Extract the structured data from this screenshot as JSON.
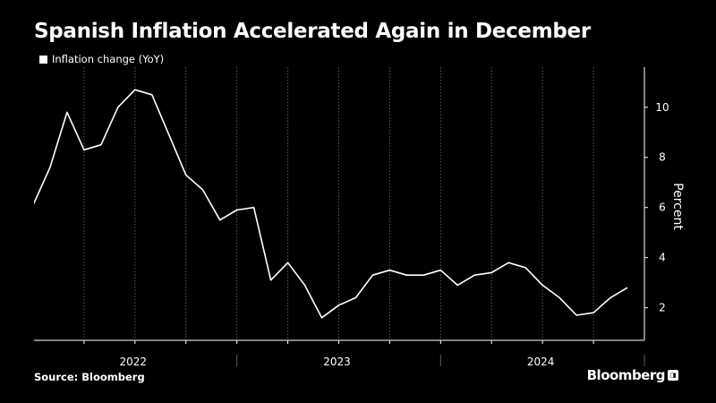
{
  "title": "Spanish Inflation Accelerated Again in December",
  "source": "Source: Bloomberg",
  "brand": "Bloomberg",
  "brand_badge": "◨",
  "colors": {
    "background": "#000000",
    "line": "#ffffff",
    "grid": "#5a5a5a",
    "text": "#ffffff"
  },
  "chart_data": {
    "type": "line",
    "legend": "Inflation change (YoY)",
    "legend_position": "top-left",
    "ylabel": "Percent",
    "y_axis_side": "right",
    "ylim": [
      0.7,
      11.6
    ],
    "yticks": [
      2,
      4,
      6,
      8,
      10
    ],
    "grid": "vertical",
    "x": [
      "2021-12",
      "2022-01",
      "2022-02",
      "2022-03",
      "2022-04",
      "2022-05",
      "2022-06",
      "2022-07",
      "2022-08",
      "2022-09",
      "2022-10",
      "2022-11",
      "2022-12",
      "2023-01",
      "2023-02",
      "2023-03",
      "2023-04",
      "2023-05",
      "2023-06",
      "2023-07",
      "2023-08",
      "2023-09",
      "2023-10",
      "2023-11",
      "2023-12",
      "2024-01",
      "2024-02",
      "2024-03",
      "2024-04",
      "2024-05",
      "2024-06",
      "2024-07",
      "2024-08",
      "2024-09",
      "2024-10",
      "2024-11",
      "2024-12"
    ],
    "xlim": [
      "2021-12",
      "2025-01"
    ],
    "year_labels": [
      "2022",
      "2023",
      "2024"
    ],
    "series": [
      {
        "name": "Inflation change (YoY)",
        "values": [
          6.5,
          6.1,
          7.6,
          9.8,
          8.3,
          8.5,
          10.0,
          10.7,
          10.5,
          8.9,
          7.3,
          6.7,
          5.5,
          5.9,
          6.0,
          3.1,
          3.8,
          2.9,
          1.6,
          2.1,
          2.4,
          3.3,
          3.5,
          3.3,
          3.3,
          3.5,
          2.9,
          3.3,
          3.4,
          3.8,
          3.6,
          2.9,
          2.4,
          1.7,
          1.8,
          2.4,
          2.8
        ]
      }
    ]
  }
}
